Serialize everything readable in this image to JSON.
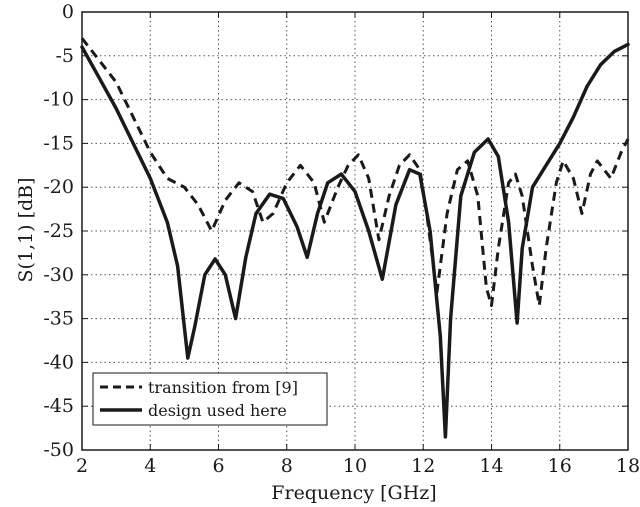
{
  "chart_data": {
    "type": "line",
    "xlabel": "Frequency [GHz]",
    "ylabel": "S(1,1) [dB]",
    "xlim": [
      2,
      18
    ],
    "ylim": [
      -50,
      0
    ],
    "xticks": [
      2,
      4,
      6,
      8,
      10,
      12,
      14,
      16,
      18
    ],
    "yticks": [
      0,
      -5,
      -10,
      -15,
      -20,
      -25,
      -30,
      -35,
      -40,
      -45,
      -50
    ],
    "grid": true,
    "legend_position": "bottom-left",
    "series": [
      {
        "name": "transition from [9]",
        "style": "dashed",
        "color": "#1a1a1a",
        "points": [
          [
            2.0,
            -3.0
          ],
          [
            2.5,
            -5.5
          ],
          [
            3.0,
            -8.0
          ],
          [
            3.5,
            -12.0
          ],
          [
            4.0,
            -16.0
          ],
          [
            4.5,
            -19.0
          ],
          [
            5.0,
            -20.0
          ],
          [
            5.4,
            -22.0
          ],
          [
            5.8,
            -25.0
          ],
          [
            6.2,
            -21.5
          ],
          [
            6.6,
            -19.5
          ],
          [
            7.0,
            -20.5
          ],
          [
            7.3,
            -24.0
          ],
          [
            7.6,
            -23.0
          ],
          [
            8.0,
            -19.5
          ],
          [
            8.4,
            -17.5
          ],
          [
            8.8,
            -19.5
          ],
          [
            9.1,
            -24.0
          ],
          [
            9.5,
            -20.0
          ],
          [
            9.8,
            -17.5
          ],
          [
            10.1,
            -16.3
          ],
          [
            10.4,
            -19.0
          ],
          [
            10.7,
            -26.0
          ],
          [
            11.0,
            -21.0
          ],
          [
            11.3,
            -17.5
          ],
          [
            11.6,
            -16.3
          ],
          [
            11.9,
            -18.0
          ],
          [
            12.1,
            -23.0
          ],
          [
            12.4,
            -32.0
          ],
          [
            12.7,
            -23.0
          ],
          [
            13.0,
            -18.0
          ],
          [
            13.3,
            -17.0
          ],
          [
            13.6,
            -21.0
          ],
          [
            13.85,
            -31.5
          ],
          [
            14.0,
            -33.5
          ],
          [
            14.2,
            -27.0
          ],
          [
            14.5,
            -19.5
          ],
          [
            14.7,
            -18.5
          ],
          [
            14.9,
            -21.0
          ],
          [
            15.2,
            -29.0
          ],
          [
            15.4,
            -33.5
          ],
          [
            15.6,
            -27.0
          ],
          [
            15.9,
            -19.5
          ],
          [
            16.1,
            -17.0
          ],
          [
            16.4,
            -19.0
          ],
          [
            16.65,
            -23.0
          ],
          [
            16.9,
            -18.5
          ],
          [
            17.1,
            -17.0
          ],
          [
            17.3,
            -18.0
          ],
          [
            17.5,
            -19.0
          ],
          [
            17.8,
            -16.0
          ],
          [
            18.0,
            -14.5
          ]
        ]
      },
      {
        "name": "design used here",
        "style": "solid",
        "color": "#1a1a1a",
        "points": [
          [
            2.0,
            -4.0
          ],
          [
            2.5,
            -7.5
          ],
          [
            3.0,
            -11.0
          ],
          [
            3.5,
            -15.0
          ],
          [
            4.0,
            -19.0
          ],
          [
            4.5,
            -24.0
          ],
          [
            4.8,
            -29.0
          ],
          [
            5.0,
            -36.0
          ],
          [
            5.1,
            -39.5
          ],
          [
            5.3,
            -36.0
          ],
          [
            5.6,
            -30.0
          ],
          [
            5.9,
            -28.2
          ],
          [
            6.2,
            -30.0
          ],
          [
            6.5,
            -35.0
          ],
          [
            6.8,
            -28.0
          ],
          [
            7.1,
            -23.0
          ],
          [
            7.5,
            -20.8
          ],
          [
            7.9,
            -21.3
          ],
          [
            8.3,
            -24.5
          ],
          [
            8.6,
            -28.0
          ],
          [
            8.9,
            -23.0
          ],
          [
            9.2,
            -19.5
          ],
          [
            9.6,
            -18.5
          ],
          [
            10.0,
            -20.5
          ],
          [
            10.4,
            -25.0
          ],
          [
            10.8,
            -30.5
          ],
          [
            11.2,
            -22.0
          ],
          [
            11.6,
            -18.0
          ],
          [
            11.9,
            -18.5
          ],
          [
            12.2,
            -25.0
          ],
          [
            12.5,
            -37.0
          ],
          [
            12.65,
            -48.5
          ],
          [
            12.8,
            -35.0
          ],
          [
            13.1,
            -21.0
          ],
          [
            13.5,
            -16.0
          ],
          [
            13.9,
            -14.5
          ],
          [
            14.2,
            -16.5
          ],
          [
            14.5,
            -24.0
          ],
          [
            14.75,
            -35.5
          ],
          [
            14.9,
            -27.0
          ],
          [
            15.2,
            -20.0
          ],
          [
            15.6,
            -17.5
          ],
          [
            16.0,
            -15.0
          ],
          [
            16.4,
            -12.0
          ],
          [
            16.8,
            -8.5
          ],
          [
            17.2,
            -6.0
          ],
          [
            17.6,
            -4.5
          ],
          [
            18.0,
            -3.7
          ]
        ]
      }
    ]
  }
}
